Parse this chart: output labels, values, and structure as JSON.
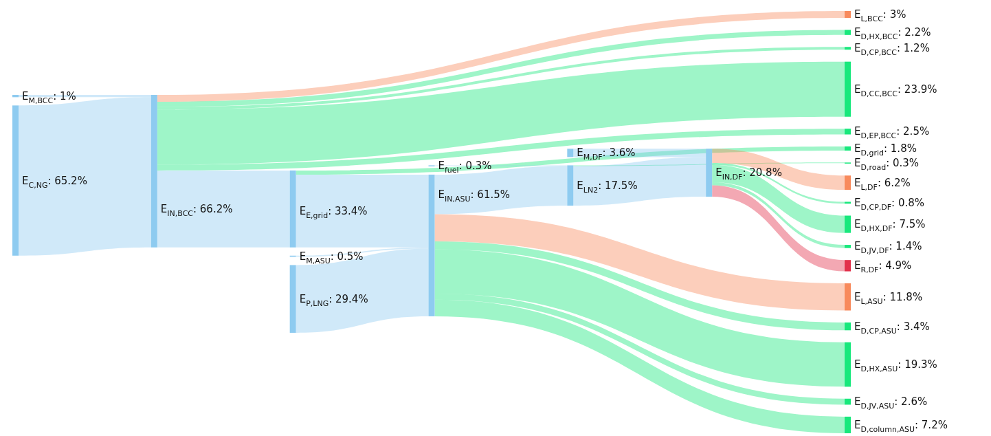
{
  "chart_data": {
    "type": "other",
    "categories": [
      "E$_{M,BCC}$",
      "E$_{C,NG}$",
      "E$_{IN,BCC}$",
      "E$_{L,BCC}$",
      "E$_{D,HX,BCC}$",
      "E$_{D,CP,BCC}$",
      "E$_{D,CC,BCC}$",
      "E$_{D,EP,BCC}$",
      "E$_{D,grid}$",
      "E$_{D,road}$",
      "E$_{E,grid}$",
      "E$_{M,ASU}$",
      "E$_{P,LNG}$",
      "E$_{fuel}$",
      "E$_{IN,ASU}$",
      "E$_{M,DF}$",
      "E$_{LN2}$",
      "E$_{IN,DF}$",
      "E$_{L,DF}$",
      "E$_{D,CP,DF}$",
      "E$_{D,HX,DF}$",
      "E$_{D,JV,DF}$",
      "E$_{R,DF}$",
      "E$_{L,ASU}$",
      "E$_{D,CP,ASU}$",
      "E$_{D,HX,ASU}$",
      "E$_{D,JV,ASU}$",
      "E$_{D,column,ASU}$"
    ],
    "value_labels": [
      ": 1%",
      ": 65.2%",
      ": 66.2%",
      ": 3%",
      ": 2.2%",
      ": 1.2%",
      ": 23.9%",
      ": 2.5%",
      ": 1.8%",
      ": 0.3%",
      ": 33.4%",
      ": 0.5%",
      ": 29.4%",
      ": 0.3%",
      ": 61.5%",
      ": 3.6%",
      ": 17.5%",
      ": 20.8%",
      ": 6.2%",
      ": 0.8%",
      ": 7.5%",
      ": 1.4%",
      ": 4.9%",
      ": 11.8%",
      ": 3.4%",
      ": 19.3%",
      ": 2.6%",
      ": 7.2%"
    ],
    "values": [
      1,
      65.2,
      66.2,
      3,
      2.2,
      1.2,
      23.9,
      2.5,
      1.8,
      0.3,
      33.4,
      0.5,
      29.4,
      0.3,
      61.5,
      3.6,
      17.5,
      20.8,
      6.2,
      0.8,
      7.5,
      1.4,
      4.9,
      11.8,
      3.4,
      19.3,
      2.6,
      7.2
    ],
    "colors": [
      "#8ecbf0",
      "#8ecbf0",
      "#8ecbf0",
      "#f88a5c",
      "#18e87c",
      "#18e87c",
      "#18e87c",
      "#18e87c",
      "#18e87c",
      "#18e87c",
      "#8ecbf0",
      "#8ecbf0",
      "#8ecbf0",
      "#8ecbf0",
      "#8ecbf0",
      "#8ecbf0",
      "#8ecbf0",
      "#8ecbf0",
      "#f88a5c",
      "#18e87c",
      "#18e87c",
      "#18e87c",
      "#e2304b",
      "#f88a5c",
      "#18e87c",
      "#18e87c",
      "#18e87c",
      "#18e87c"
    ],
    "series": [
      {
        "values": [
          null,
          null,
          true,
          null,
          null,
          null,
          null,
          null,
          null,
          null,
          null,
          null,
          null,
          null,
          null,
          null,
          null,
          null,
          null,
          null,
          null,
          null,
          null,
          null,
          null,
          null,
          null,
          null
        ]
      },
      {
        "values": [
          null,
          null,
          true,
          null,
          null,
          null,
          null,
          null,
          null,
          null,
          null,
          null,
          null,
          null,
          null,
          null,
          null,
          null,
          null,
          null,
          null,
          null,
          null,
          null,
          null,
          null,
          null,
          null
        ]
      },
      {
        "values": [
          null,
          null,
          null,
          true,
          true,
          true,
          true,
          true,
          null,
          null,
          true,
          null,
          null,
          null,
          null,
          null,
          null,
          null,
          null,
          null,
          null,
          null,
          null,
          null,
          null,
          null,
          null,
          null
        ]
      },
      {
        "values": [
          null,
          null,
          null,
          null,
          null,
          null,
          null,
          null,
          null,
          null,
          null,
          null,
          null,
          null,
          null,
          null,
          null,
          null,
          null,
          null,
          null,
          null,
          null,
          null,
          null,
          null,
          null,
          null
        ]
      },
      {
        "values": [
          null,
          null,
          null,
          null,
          null,
          null,
          null,
          null,
          null,
          null,
          null,
          null,
          null,
          null,
          null,
          null,
          null,
          null,
          null,
          null,
          null,
          null,
          null,
          null,
          null,
          null,
          null,
          null
        ]
      },
      {
        "values": [
          null,
          null,
          null,
          null,
          null,
          null,
          null,
          null,
          null,
          null,
          null,
          null,
          null,
          null,
          null,
          null,
          null,
          null,
          null,
          null,
          null,
          null,
          null,
          null,
          null,
          null,
          null,
          null
        ]
      },
      {
        "values": [
          null,
          null,
          null,
          null,
          null,
          null,
          null,
          null,
          null,
          null,
          null,
          null,
          null,
          null,
          null,
          null,
          null,
          null,
          null,
          null,
          null,
          null,
          null,
          null,
          null,
          null,
          null,
          null
        ]
      },
      {
        "values": [
          null,
          null,
          null,
          null,
          null,
          null,
          null,
          null,
          null,
          null,
          null,
          null,
          null,
          null,
          null,
          null,
          null,
          null,
          null,
          null,
          null,
          null,
          null,
          null,
          null,
          null,
          null,
          null
        ]
      },
      {
        "values": [
          null,
          null,
          null,
          null,
          null,
          null,
          null,
          null,
          null,
          null,
          null,
          null,
          null,
          null,
          null,
          null,
          null,
          null,
          null,
          null,
          null,
          null,
          null,
          null,
          null,
          null,
          null,
          null
        ]
      },
      {
        "values": [
          null,
          null,
          null,
          null,
          null,
          null,
          null,
          null,
          null,
          null,
          null,
          null,
          null,
          null,
          null,
          null,
          null,
          null,
          null,
          null,
          null,
          null,
          null,
          null,
          null,
          null,
          null,
          null
        ]
      },
      {
        "values": [
          null,
          null,
          null,
          null,
          null,
          null,
          null,
          null,
          true,
          null,
          null,
          null,
          null,
          null,
          true,
          null,
          null,
          null,
          null,
          null,
          null,
          null,
          null,
          null,
          null,
          null,
          null,
          null
        ]
      },
      {
        "values": [
          null,
          null,
          null,
          null,
          null,
          null,
          null,
          null,
          null,
          null,
          null,
          null,
          null,
          null,
          true,
          null,
          null,
          null,
          null,
          null,
          null,
          null,
          null,
          null,
          null,
          null,
          null,
          null
        ]
      },
      {
        "values": [
          null,
          null,
          null,
          null,
          null,
          null,
          null,
          null,
          null,
          null,
          null,
          null,
          null,
          null,
          true,
          null,
          null,
          null,
          null,
          null,
          null,
          null,
          null,
          null,
          null,
          null,
          null,
          null
        ]
      },
      {
        "values": [
          null,
          null,
          null,
          null,
          null,
          null,
          null,
          null,
          null,
          null,
          null,
          null,
          null,
          null,
          null,
          null,
          true,
          null,
          null,
          null,
          null,
          null,
          null,
          null,
          null,
          null,
          null,
          null
        ]
      },
      {
        "values": [
          null,
          null,
          null,
          null,
          null,
          null,
          null,
          null,
          null,
          null,
          null,
          null,
          null,
          null,
          null,
          null,
          true,
          null,
          null,
          null,
          null,
          null,
          null,
          true,
          true,
          true,
          true,
          true
        ]
      },
      {
        "values": [
          null,
          null,
          null,
          null,
          null,
          null,
          null,
          null,
          null,
          null,
          null,
          null,
          null,
          null,
          null,
          null,
          null,
          true,
          null,
          null,
          null,
          null,
          null,
          null,
          null,
          null,
          null,
          null
        ]
      },
      {
        "values": [
          null,
          null,
          null,
          null,
          null,
          null,
          null,
          null,
          null,
          true,
          null,
          null,
          null,
          null,
          null,
          null,
          null,
          true,
          null,
          null,
          null,
          null,
          null,
          null,
          null,
          null,
          null,
          null
        ]
      },
      {
        "values": [
          null,
          null,
          null,
          null,
          null,
          null,
          null,
          null,
          null,
          null,
          null,
          null,
          null,
          null,
          null,
          null,
          null,
          null,
          true,
          true,
          true,
          true,
          true,
          null,
          null,
          null,
          null,
          null
        ]
      }
    ]
  }
}
